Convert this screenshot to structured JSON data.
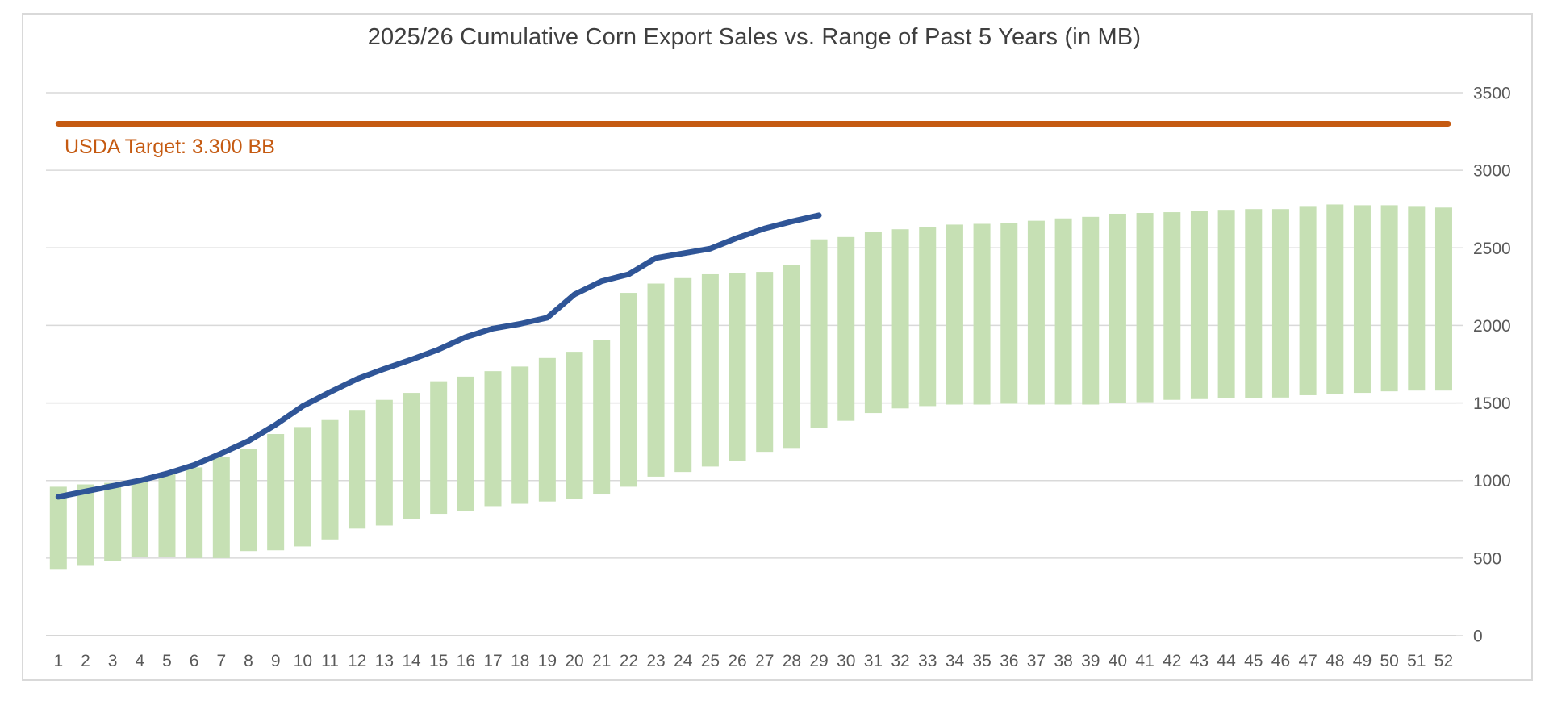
{
  "chart_data": {
    "type": "bar",
    "subtype": "floating-range-bars-with-line-overlay",
    "title": "2025/26 Cumulative Corn Export Sales vs. Range of Past 5 Years (in MB)",
    "xlabel": "",
    "ylabel": "",
    "ylim": [
      0,
      3500
    ],
    "yticks": [
      0,
      500,
      1000,
      1500,
      2000,
      2500,
      3000,
      3500
    ],
    "grid": true,
    "legend": "none",
    "categories": [
      1,
      2,
      3,
      4,
      5,
      6,
      7,
      8,
      9,
      10,
      11,
      12,
      13,
      14,
      15,
      16,
      17,
      18,
      19,
      20,
      21,
      22,
      23,
      24,
      25,
      26,
      27,
      28,
      29,
      30,
      31,
      32,
      33,
      34,
      35,
      36,
      37,
      38,
      39,
      40,
      41,
      42,
      43,
      44,
      45,
      46,
      47,
      48,
      49,
      50,
      51,
      52
    ],
    "series": [
      {
        "name": "Range of past 5 years",
        "type": "range-bar",
        "color": "#C6E0B4",
        "low": [
          430,
          450,
          480,
          505,
          505,
          500,
          500,
          545,
          550,
          575,
          620,
          690,
          710,
          750,
          785,
          805,
          835,
          850,
          865,
          880,
          910,
          960,
          1025,
          1055,
          1090,
          1125,
          1185,
          1210,
          1340,
          1385,
          1435,
          1465,
          1480,
          1490,
          1490,
          1495,
          1490,
          1490,
          1490,
          1500,
          1505,
          1520,
          1525,
          1530,
          1530,
          1535,
          1550,
          1555,
          1565,
          1575,
          1580,
          1580
        ],
        "high": [
          960,
          975,
          985,
          1005,
          1045,
          1085,
          1150,
          1205,
          1300,
          1345,
          1390,
          1455,
          1520,
          1565,
          1640,
          1670,
          1705,
          1735,
          1790,
          1830,
          1905,
          2210,
          2270,
          2305,
          2330,
          2335,
          2345,
          2390,
          2555,
          2570,
          2605,
          2620,
          2635,
          2650,
          2655,
          2660,
          2675,
          2690,
          2700,
          2720,
          2725,
          2730,
          2740,
          2745,
          2750,
          2750,
          2770,
          2780,
          2775,
          2775,
          2770,
          2760
        ]
      },
      {
        "name": "2025/26 cumulative export sales",
        "type": "line",
        "color": "#2F5597",
        "weeks_covered": 29,
        "values": [
          895,
          930,
          965,
          1000,
          1045,
          1100,
          1175,
          1255,
          1360,
          1480,
          1570,
          1655,
          1720,
          1780,
          1845,
          1925,
          1980,
          2010,
          2050,
          2200,
          2285,
          2330,
          2435,
          2465,
          2495,
          2565,
          2625,
          2670,
          2710
        ]
      },
      {
        "name": "USDA Target",
        "type": "reference-line",
        "color": "#C55A11",
        "value": 3300,
        "label": "USDA Target: 3.300 BB"
      }
    ],
    "colors": {
      "gridline": "#D9D9D9",
      "zero_axis": "#C8C8C8",
      "axis_text": "#595959",
      "title_text": "#3F3F3F",
      "border": "#D9D9D9",
      "background": "#FFFFFF"
    }
  }
}
